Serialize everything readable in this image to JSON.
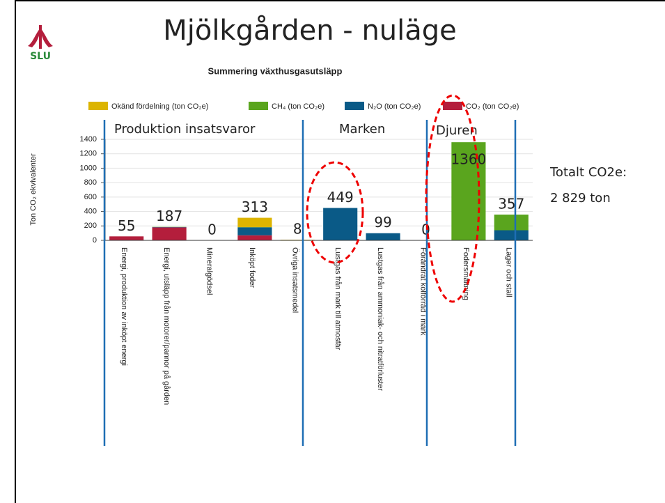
{
  "slide_title": "Mjölkgården - nuläge",
  "logo_text": "SLU",
  "sections": [
    "Produktion insatsvaror",
    "Marken",
    "Djuren"
  ],
  "total_text": [
    "Totalt CO2e:",
    "2 829 ton"
  ],
  "chart_data": {
    "type": "stacked_bar",
    "title": "Summering växthusgasutsläpp",
    "y_label": "Ton CO₂ ekvivalenter",
    "categories": [
      "Energi, produktion av inköpt energi",
      "Energi, utsläpp från motorer/pannor på gården",
      "Mineralgödsel",
      "Inköpt foder",
      "Övriga insatsmedel",
      "Lustgas från mark till atmosfär",
      "Lustgas från ammoniak- och nitratförluster",
      "Förändrat kolförråd i mark",
      "Fodersmältning",
      "Lager och stall"
    ],
    "series": [
      {
        "name": "Okänd fördelning (ton CO₂e)",
        "color": "#dcb400",
        "values": [
          0,
          0,
          0,
          130,
          8,
          0,
          0,
          0,
          0,
          0
        ]
      },
      {
        "name": "CH₄ (ton CO₂e)",
        "color": "#5aa51e",
        "values": [
          0,
          3,
          0,
          3,
          0,
          0,
          0,
          0,
          1360,
          217
        ]
      },
      {
        "name": "N₂O (ton CO₂e)",
        "color": "#0a5a87",
        "values": [
          0,
          4,
          0,
          110,
          0,
          449,
          99,
          0,
          0,
          140
        ]
      },
      {
        "name": "CO₂ (ton CO₂e)",
        "color": "#b41e3c",
        "values": [
          55,
          180,
          0,
          70,
          0,
          0,
          0,
          0,
          0,
          0
        ]
      }
    ],
    "totals": [
      55,
      187,
      0,
      313,
      8,
      449,
      99,
      0,
      1360,
      357
    ],
    "ylim": [
      0,
      1400
    ],
    "yticks": [
      0,
      200,
      400,
      600,
      800,
      1000,
      1200,
      1400
    ],
    "grid": true
  }
}
